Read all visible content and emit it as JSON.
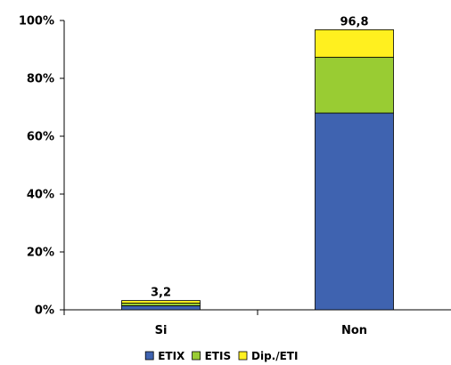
{
  "chart_data": {
    "type": "bar",
    "stacked": true,
    "categories": [
      "Si",
      "Non"
    ],
    "series": [
      {
        "name": "ETIX",
        "color": "#3F63B0",
        "values": [
          1.4,
          68.0
        ]
      },
      {
        "name": "ETIS",
        "color": "#99CC33",
        "values": [
          0.9,
          19.3
        ]
      },
      {
        "name": "Dip./ETI",
        "color": "#FFF01F",
        "values": [
          0.9,
          9.5
        ]
      }
    ],
    "totals": [
      "3,2",
      "96,8"
    ],
    "ylim": [
      0,
      100
    ],
    "yticks": [
      "0%",
      "20%",
      "40%",
      "60%",
      "80%",
      "100%"
    ],
    "ytick_values": [
      0,
      20,
      40,
      60,
      80,
      100
    ],
    "grid": false,
    "legend_position": "bottom"
  }
}
